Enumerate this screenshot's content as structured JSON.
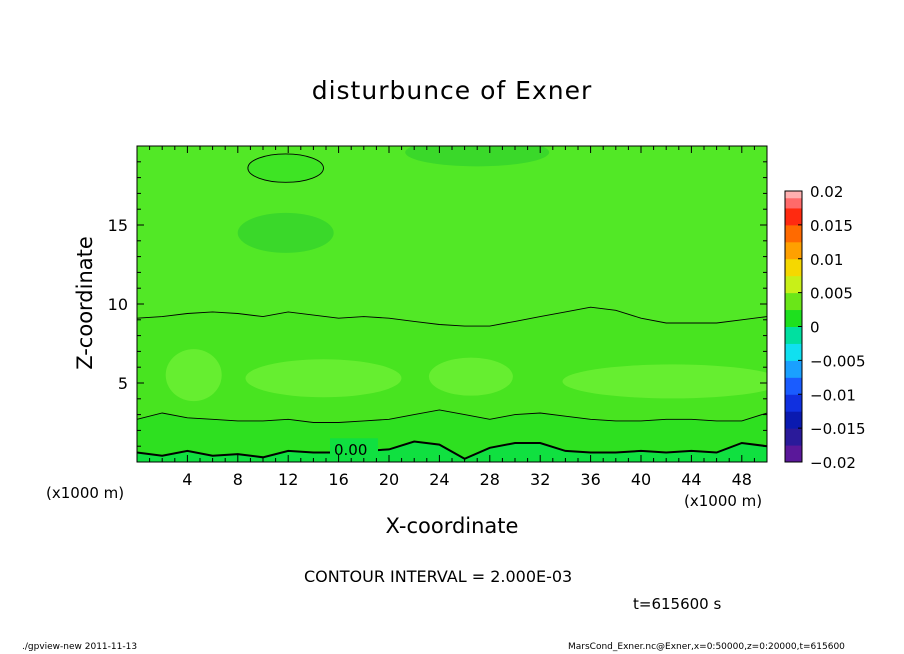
{
  "chart_data": {
    "type": "contour",
    "title": "disturbunce of Exner",
    "xlabel": "X-coordinate",
    "ylabel": "Z-coordinate",
    "x_unit_label": "(x1000 m)",
    "xlim": [
      0,
      50
    ],
    "ylim": [
      0,
      20
    ],
    "x_ticks": [
      4,
      8,
      12,
      16,
      20,
      24,
      28,
      32,
      36,
      40,
      44,
      48
    ],
    "y_ticks": [
      5,
      10,
      15
    ],
    "contour_label": "0.00",
    "contour_interval_text": "CONTOUR INTERVAL = 2.000E-03",
    "time_text": "t=615600 s",
    "colorbar": {
      "labels": [
        "0.02",
        "0.015",
        "0.01",
        "0.005",
        "0",
        "−0.005",
        "−0.01",
        "−0.015",
        "−0.02"
      ],
      "min": -0.02,
      "max": 0.02,
      "levels": [
        {
          "lo": -0.02,
          "color": "#5a189a"
        },
        {
          "lo": -0.0175,
          "color": "#2a1a9a"
        },
        {
          "lo": -0.015,
          "color": "#0a1ab0"
        },
        {
          "lo": -0.0125,
          "color": "#1030e0"
        },
        {
          "lo": -0.01,
          "color": "#1a5cff"
        },
        {
          "lo": -0.0075,
          "color": "#1aa0ff"
        },
        {
          "lo": -0.005,
          "color": "#10e0f0"
        },
        {
          "lo": -0.0025,
          "color": "#00e0a0"
        },
        {
          "lo": 0.0,
          "color": "#1ee01e"
        },
        {
          "lo": 0.0025,
          "color": "#6ae618"
        },
        {
          "lo": 0.005,
          "color": "#c8f018"
        },
        {
          "lo": 0.0075,
          "color": "#f5d800"
        },
        {
          "lo": 0.01,
          "color": "#ffa000"
        },
        {
          "lo": 0.0125,
          "color": "#ff6a00"
        },
        {
          "lo": 0.015,
          "color": "#ff2a10"
        },
        {
          "lo": 0.0175,
          "color": "#ff6a6a"
        },
        {
          "lo": 0.019,
          "color": "#ffb0b0"
        }
      ]
    },
    "field_colors": {
      "bottom": "#10e040",
      "lower": "#2ee020",
      "main": "#48e420",
      "upper": "#52e826",
      "highlight": "#66ee30",
      "dip": "#3ad82a"
    },
    "contours": [
      {
        "name": "zero",
        "x": [
          0,
          2,
          4,
          6,
          8,
          10,
          12,
          14,
          16,
          18,
          20,
          22,
          24,
          26,
          28,
          30,
          32,
          34,
          36,
          38,
          40,
          42,
          44,
          46,
          48,
          50
        ],
        "z": [
          0.6,
          0.4,
          0.7,
          0.4,
          0.5,
          0.3,
          0.7,
          0.6,
          0.6,
          0.7,
          0.8,
          1.3,
          1.1,
          0.2,
          0.9,
          1.2,
          1.2,
          0.7,
          0.6,
          0.6,
          0.7,
          0.6,
          0.7,
          0.6,
          1.2,
          1.0
        ]
      },
      {
        "name": "low",
        "x": [
          0,
          2,
          4,
          6,
          8,
          10,
          12,
          14,
          16,
          18,
          20,
          22,
          24,
          26,
          28,
          30,
          32,
          34,
          36,
          38,
          40,
          42,
          44,
          46,
          48,
          50
        ],
        "z": [
          2.7,
          3.1,
          2.8,
          2.7,
          2.6,
          2.6,
          2.7,
          2.5,
          2.5,
          2.6,
          2.7,
          3.0,
          3.3,
          3.0,
          2.7,
          3.0,
          3.1,
          2.9,
          2.7,
          2.6,
          2.6,
          2.7,
          2.7,
          2.6,
          2.6,
          3.1
        ]
      },
      {
        "name": "mid",
        "x": [
          0,
          2,
          4,
          6,
          8,
          10,
          12,
          14,
          16,
          18,
          20,
          22,
          24,
          26,
          28,
          30,
          32,
          34,
          36,
          38,
          40,
          42,
          44,
          46,
          48,
          50
        ],
        "z": [
          9.1,
          9.2,
          9.4,
          9.5,
          9.4,
          9.2,
          9.5,
          9.3,
          9.1,
          9.2,
          9.1,
          8.9,
          8.7,
          8.6,
          8.6,
          8.9,
          9.2,
          9.5,
          9.8,
          9.6,
          9.1,
          8.8,
          8.8,
          8.8,
          9.0,
          9.2
        ]
      }
    ],
    "top_ellipse": {
      "cx": 11.8,
      "cz": 18.6,
      "rx": 3.0,
      "rz": 0.9
    }
  },
  "footer": {
    "left": "./gpview-new   2011-11-13",
    "right": "MarsCond_Exner.nc@Exner,x=0:50000,z=0:20000,t=615600"
  }
}
